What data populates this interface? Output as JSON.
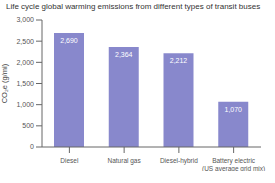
{
  "chart_data": {
    "type": "bar",
    "title": "Life cycle global warming emissions from different types of transit buses",
    "categories": [
      "Diesel",
      "Natural gas",
      "Diesel-hybrid",
      "Battery electric\n(US average grid mix)"
    ],
    "values": [
      2690,
      2364,
      2212,
      1070
    ],
    "value_labels": [
      "2,690",
      "2,364",
      "2,212",
      "1,070"
    ],
    "data_labels": true,
    "color": "#8888cc",
    "ylabel": "CO₂e (g/mi)",
    "ylim": [
      0,
      3000
    ],
    "yticks": [
      0,
      500,
      {
        "value": 1000,
        "label": "1,000"
      },
      {
        "value": 1500,
        "label": "1,500"
      },
      {
        "value": 2000,
        "label": "2,000"
      },
      {
        "value": 2500,
        "label": "2,500"
      },
      {
        "value": 3000,
        "label": "3,000"
      }
    ],
    "grid": false
  }
}
